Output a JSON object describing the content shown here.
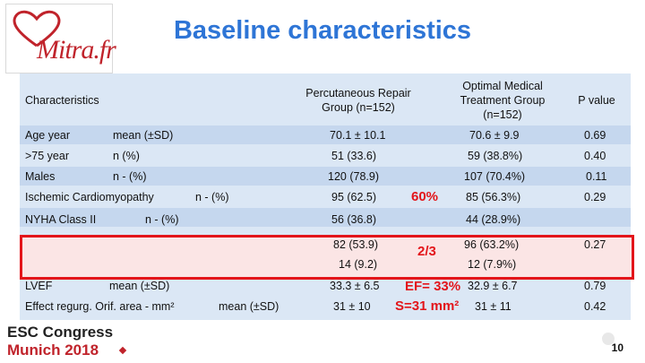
{
  "logo": {
    "text": "Mitra.fr"
  },
  "title": "Baseline characteristics",
  "table": {
    "headers": {
      "characteristics": "Characteristics",
      "pci": "Percutaneous Repair Group (n=152)",
      "omt": "Optimal Medical Treatment Group (n=152)",
      "p": "P value"
    },
    "rows": [
      {
        "label": "Age year",
        "stat": "mean (±SD)",
        "pci": "70.1 ± 10.1",
        "omt": "70.6 ± 9.9",
        "p": "0.69"
      },
      {
        "label": ">75 year",
        "stat": "n (%)",
        "pci": "51 (33.6)",
        "omt": "59 (38.8%)",
        "p": "0.40"
      },
      {
        "label": "Males",
        "stat": "n - (%)",
        "pci": "120 (78.9)",
        "omt": "107 (70.4%)",
        "p": "0.11"
      },
      {
        "label": "Ischemic Cardiomyopathy",
        "stat": "n - (%)",
        "pci": "95 (62.5)",
        "omt": "85 (56.3%)",
        "p": "0.29"
      },
      {
        "label": "NYHA Class II",
        "stat": "n - (%)",
        "pci": "56 (36.8)",
        "omt": "44 (28.9%)",
        "p": ""
      },
      {
        "label": "",
        "stat": "",
        "pci": "82 (53.9)",
        "omt": "96 (63.2%)",
        "p": "0.27"
      },
      {
        "label": "",
        "stat": "",
        "pci": "14 (9.2)",
        "omt": "12 (7.9%)",
        "p": ""
      },
      {
        "label": "LVEF",
        "stat": "mean (±SD)",
        "pci": "33.3 ± 6.5",
        "omt": "32.9 ± 6.7",
        "p": "0.79"
      },
      {
        "label": "Effect regurg. Orif. area - mm²",
        "stat": "mean (±SD)",
        "pci": "31 ± 10",
        "omt": "31 ± 11",
        "p": "0.42"
      }
    ]
  },
  "annotations": {
    "ischemic": "60%",
    "nyha": "2/3",
    "ef": "EF= 33%",
    "eroa": "S=31 mm²"
  },
  "footer": {
    "congress": "ESC Congress",
    "city": "Munich 2018",
    "page": "10"
  },
  "colors": {
    "title": "#2e75d6",
    "highlight_border": "#e3151a",
    "table_bg": "#dbe7f5",
    "table_alt": "#c5d7ee"
  }
}
